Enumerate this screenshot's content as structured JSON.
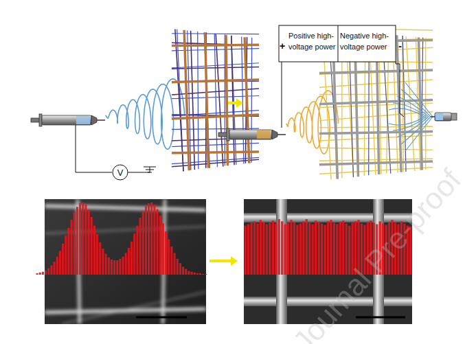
{
  "left_schematic": {
    "meter_label": "V"
  },
  "right_schematic": {
    "positive_sign": "+",
    "positive_label": [
      "Positive high-",
      "voltage power"
    ],
    "negative_label": [
      "Negative high-",
      "voltage power"
    ],
    "negative_sign": "-"
  },
  "chart_data": [
    {
      "type": "bar",
      "color": "#e8141c",
      "ylim": [
        0,
        100
      ],
      "tick_labels": false,
      "values": [
        2,
        3,
        4,
        6,
        9,
        13,
        18,
        25,
        33,
        43,
        54,
        65,
        76,
        86,
        94,
        99,
        100,
        97,
        90,
        80,
        68,
        56,
        45,
        36,
        29,
        24,
        21,
        20,
        20,
        22,
        25,
        30,
        37,
        46,
        57,
        68,
        79,
        88,
        95,
        99,
        100,
        97,
        91,
        82,
        71,
        60,
        49,
        39,
        30,
        22,
        16,
        11,
        8,
        5,
        4,
        3,
        2,
        2,
        1,
        1
      ]
    },
    {
      "type": "bar",
      "color": "#e8141c",
      "ylim": [
        0,
        100
      ],
      "tick_labels": false,
      "values": [
        68,
        70,
        72,
        74,
        71,
        76,
        73,
        70,
        72,
        75,
        71,
        77,
        74,
        70,
        72,
        76,
        73,
        69,
        71,
        74,
        77,
        72,
        70,
        75,
        73,
        71,
        69,
        74,
        76,
        72,
        70,
        73,
        75,
        71,
        68,
        72,
        74,
        76,
        71,
        69,
        73,
        75,
        72,
        70,
        74,
        71,
        69,
        73,
        76,
        72,
        70,
        74,
        71,
        68,
        67
      ]
    }
  ],
  "watermark": "Journal Pre-proof"
}
